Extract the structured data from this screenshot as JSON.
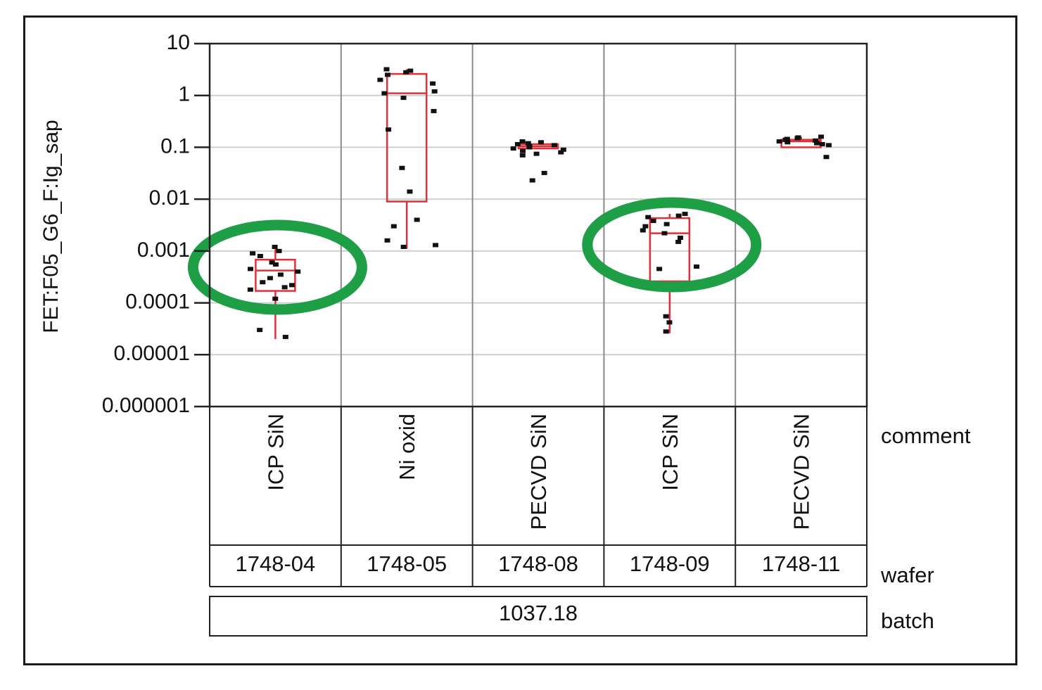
{
  "chart_data": {
    "type": "scatter",
    "ylabel": "FET:F05_G6_F:Ig_sap",
    "y_scale": "log",
    "ylim": [
      1e-06,
      10
    ],
    "y_ticks": [
      "10",
      "1",
      "0.1",
      "0.01",
      "0.001",
      "0.0001",
      "0.00001",
      "0.000001"
    ],
    "y_tick_values": [
      10,
      1,
      0.1,
      0.01,
      0.001,
      0.0001,
      1e-05,
      1e-06
    ],
    "grid": true,
    "row_labels": {
      "comment": "comment",
      "wafer": "wafer",
      "batch": "batch"
    },
    "batch": "1037.18",
    "groups": [
      {
        "comment": "ICP SiN",
        "wafer": "1748-04",
        "box": {
          "q1": 0.00017,
          "median": 0.00042,
          "q3": 0.00068,
          "whisker_low": 2e-05,
          "whisker_high": 0.0013
        },
        "highlighted": true,
        "points": [
          0.0012,
          0.001,
          0.0009,
          0.0008,
          0.0006,
          0.00055,
          0.00045,
          0.0004,
          0.00035,
          0.0003,
          0.00025,
          0.00022,
          0.0002,
          0.00018,
          0.00012,
          3e-05,
          2.2e-05
        ]
      },
      {
        "comment": "Ni oxid",
        "wafer": "1748-05",
        "box": {
          "q1": 0.009,
          "median": 1.1,
          "q3": 2.6,
          "whisker_low": 0.0011,
          "whisker_high": 3.2
        },
        "highlighted": false,
        "points": [
          3.2,
          3.0,
          2.8,
          2.5,
          2.0,
          1.7,
          1.2,
          1.1,
          0.9,
          0.5,
          0.22,
          0.04,
          0.014,
          0.004,
          0.003,
          0.0016,
          0.0013,
          0.0012
        ]
      },
      {
        "comment": "PECVD SiN",
        "wafer": "1748-08",
        "box": {
          "q1": 0.095,
          "median": 0.105,
          "q3": 0.115,
          "whisker_low": 0.095,
          "whisker_high": 0.12
        },
        "highlighted": false,
        "points": [
          0.13,
          0.125,
          0.12,
          0.115,
          0.11,
          0.105,
          0.1,
          0.095,
          0.09,
          0.085,
          0.08,
          0.075,
          0.07,
          0.032,
          0.023
        ]
      },
      {
        "comment": "ICP SiN",
        "wafer": "1748-09",
        "box": {
          "q1": 0.00026,
          "median": 0.0022,
          "q3": 0.0043,
          "whisker_low": 2.6e-05,
          "whisker_high": 0.0052
        },
        "highlighted": true,
        "points": [
          0.0052,
          0.0048,
          0.0045,
          0.0038,
          0.0033,
          0.003,
          0.0025,
          0.0022,
          0.0018,
          0.0015,
          0.0005,
          0.00045,
          5.5e-05,
          4.2e-05,
          2.8e-05
        ]
      },
      {
        "comment": "PECVD SiN",
        "wafer": "1748-11",
        "box": {
          "q1": 0.1,
          "median": 0.13,
          "q3": 0.14,
          "whisker_low": 0.1,
          "whisker_high": 0.16
        },
        "highlighted": false,
        "points": [
          0.16,
          0.155,
          0.15,
          0.145,
          0.14,
          0.135,
          0.13,
          0.125,
          0.12,
          0.115,
          0.11,
          0.065
        ]
      }
    ],
    "colors": {
      "box": "#e0303a",
      "point": "#111111",
      "highlight": "#1e9e45",
      "grid": "#cfcfcf",
      "frame": "#222222"
    }
  }
}
